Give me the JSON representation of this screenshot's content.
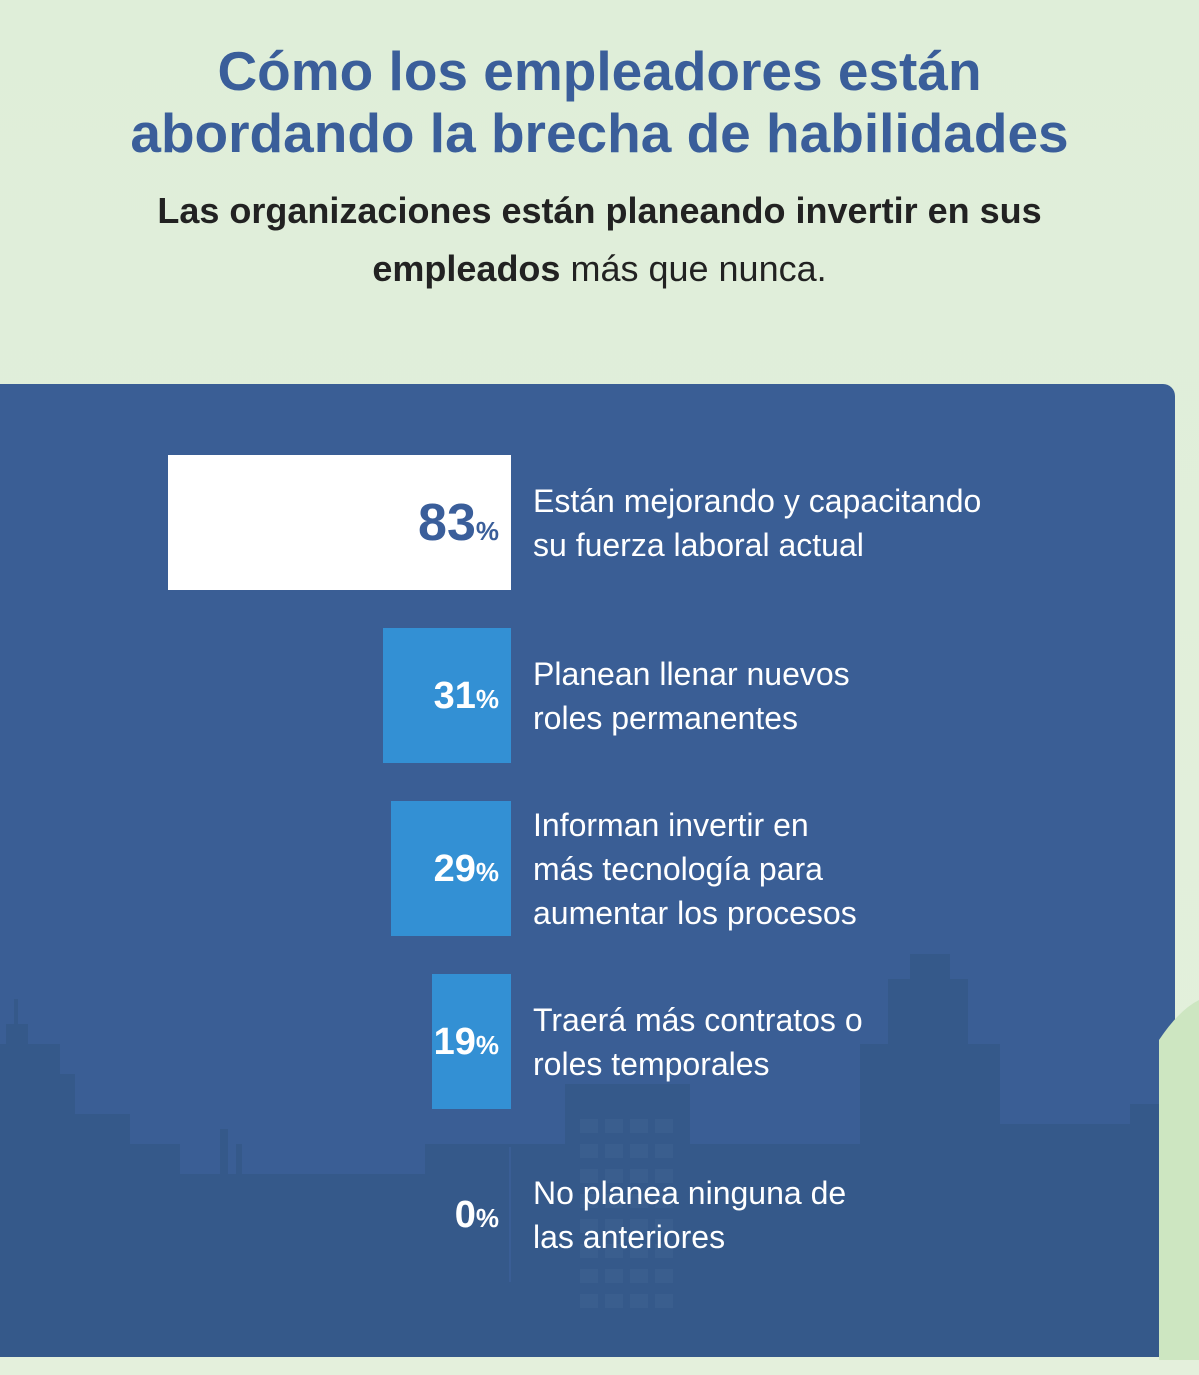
{
  "header": {
    "title_line1": "Cómo los empleadores están",
    "title_line2": "abordando la brecha de habilidades",
    "subtitle_line1": "Las organizaciones están planeando invertir en sus",
    "subtitle_line2_bold": "empleados",
    "subtitle_line2_light": " más que nunca."
  },
  "colors": {
    "title": "#3a5e9a",
    "panel": "#3a5e95",
    "bar_top": "#ffffff",
    "bar": "#3390d4",
    "skyline": "#335a86",
    "background": "#e1efda"
  },
  "chart_data": {
    "type": "bar",
    "orientation": "horizontal",
    "title": "Cómo los empleadores están abordando la brecha de habilidades",
    "unit": "%",
    "xlim": [
      0,
      100
    ],
    "categories": [
      "Están mejorando y capacitando su fuerza laboral actual",
      "Planean llenar nuevos roles permanentes",
      "Informan invertir en más tecnología para aumentar los procesos",
      "Traerá más contratos o roles temporales",
      "No planea ninguna de las anteriores"
    ],
    "values": [
      83,
      31,
      29,
      19,
      0
    ],
    "items": [
      {
        "value": 83,
        "value_text": "83",
        "pct": "%",
        "label_lines": [
          "Están mejorando y capacitando",
          "su fuerza laboral actual"
        ],
        "highlight": true
      },
      {
        "value": 31,
        "value_text": "31",
        "pct": "%",
        "label_lines": [
          "Planean llenar nuevos",
          "roles permanentes"
        ],
        "highlight": false
      },
      {
        "value": 29,
        "value_text": "29",
        "pct": "%",
        "label_lines": [
          "Informan invertir en",
          "más tecnología para",
          "aumentar los procesos"
        ],
        "highlight": false
      },
      {
        "value": 19,
        "value_text": "19",
        "pct": "%",
        "label_lines": [
          "Traerá más contratos o",
          "roles temporales"
        ],
        "highlight": false
      },
      {
        "value": 0,
        "value_text": "0",
        "pct": "%",
        "label_lines": [
          "No planea ninguna de",
          "las anteriores"
        ],
        "highlight": false
      }
    ]
  }
}
